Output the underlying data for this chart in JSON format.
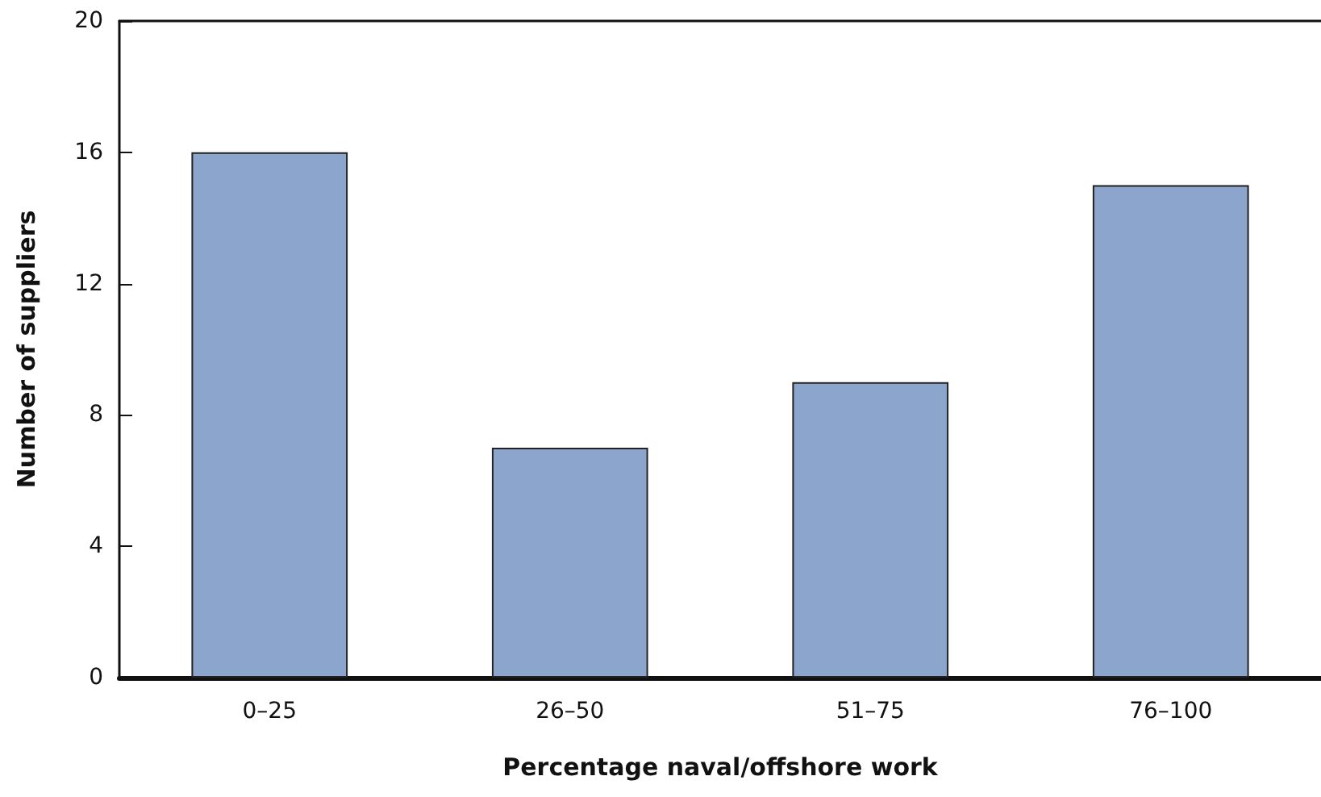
{
  "chart_data": {
    "type": "bar",
    "xlabel": "Percentage naval/offshore work",
    "ylabel": "Number of suppliers",
    "categories": [
      "0–25",
      "26–50",
      "51–75",
      "76–100"
    ],
    "values": [
      16,
      7,
      9,
      15
    ],
    "color": "#8ba5cc",
    "ylim": [
      0,
      20
    ],
    "yticks": [
      0,
      4,
      8,
      12,
      16,
      20
    ],
    "grid": false
  }
}
